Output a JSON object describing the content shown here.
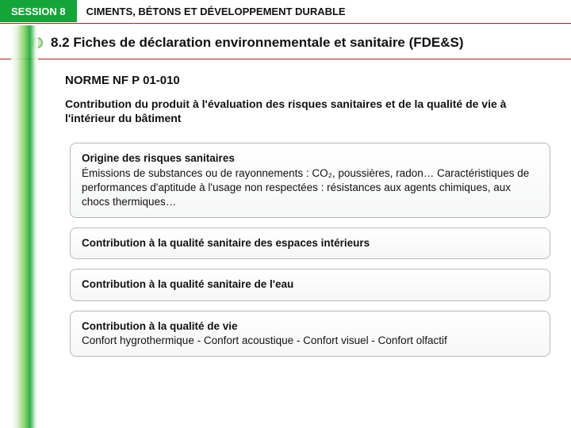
{
  "header": {
    "session": "SESSION 8",
    "topic": "CIMENTS, BÉTONS ET DÉVELOPPEMENT DURABLE"
  },
  "subtitle": "8.2 Fiches de déclaration environnementale et sanitaire (FDE&S)",
  "norm": "NORME NF P 01-010",
  "intro": "Contribution du produit à l'évaluation des risques sanitaires et de la qualité de vie à l'intérieur du bâtiment",
  "boxes": [
    {
      "lead": "Origine des risques sanitaires",
      "body": "Émissions de substances ou de rayonnements : CO₂, poussières, radon…\nCaractéristiques de performances d'aptitude à l'usage non respectées : résistances aux agents chimiques, aux chocs thermiques…"
    },
    {
      "lead": "Contribution à la qualité sanitaire des espaces intérieurs",
      "body": ""
    },
    {
      "lead": "Contribution à la qualité sanitaire de l'eau",
      "body": ""
    },
    {
      "lead": "Contribution à la qualité de vie",
      "body": "Confort hygrothermique - Confort acoustique - Confort visuel - Confort olfactif"
    }
  ],
  "colors": {
    "green": "#13a538",
    "red_rule": "#b02020",
    "box_border": "#b9b9b9"
  }
}
